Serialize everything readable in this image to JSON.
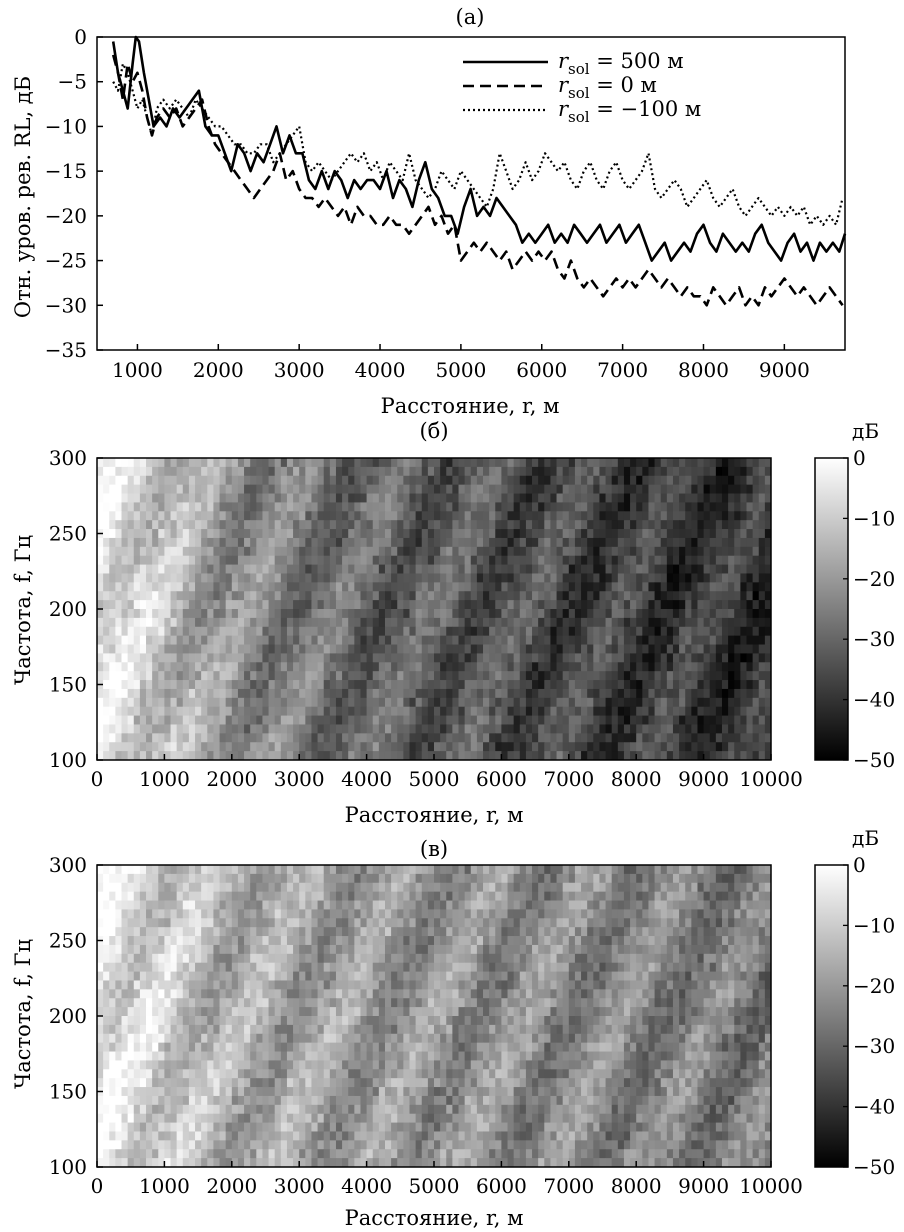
{
  "chart_data": [
    {
      "type": "line",
      "title": "(а)",
      "xlabel": "Расстояние, r, м",
      "ylabel": "Отн. уров. рев. RL, дБ",
      "xlim": [
        500,
        9750
      ],
      "ylim": [
        -35,
        0
      ],
      "xticks": [
        "1000",
        "2000",
        "3000",
        "4000",
        "5000",
        "6000",
        "7000",
        "8000",
        "9000"
      ],
      "yticks": [
        "0",
        "−5",
        "−10",
        "−15",
        "−20",
        "−25",
        "−30",
        "−35"
      ],
      "legend_position": "top-right",
      "series": [
        {
          "name_prefix": "r",
          "name_sub": "sol",
          "name_value": "= 500 м",
          "style": "solid",
          "x": [
            700,
            760,
            820,
            880,
            940,
            980,
            1020,
            1080,
            1140,
            1200,
            1280,
            1360,
            1440,
            1520,
            1600,
            1680,
            1760,
            1840,
            1920,
            2000,
            2080,
            2160,
            2240,
            2320,
            2400,
            2480,
            2560,
            2640,
            2720,
            2800,
            2880,
            2960,
            3040,
            3120,
            3200,
            3280,
            3360,
            3440,
            3520,
            3600,
            3680,
            3760,
            3840,
            3920,
            4000,
            4080,
            4160,
            4240,
            4320,
            4400,
            4480,
            4560,
            4640,
            4720,
            4800,
            4880,
            4960,
            5040,
            5120,
            5200,
            5280,
            5360,
            5440,
            5520,
            5600,
            5680,
            5760,
            5840,
            5920,
            6000,
            6080,
            6160,
            6240,
            6320,
            6400,
            6480,
            6560,
            6640,
            6720,
            6800,
            6880,
            6960,
            7040,
            7120,
            7200,
            7280,
            7360,
            7440,
            7520,
            7600,
            7680,
            7760,
            7840,
            7920,
            8000,
            8080,
            8160,
            8240,
            8320,
            8400,
            8480,
            8560,
            8640,
            8720,
            8800,
            8880,
            8960,
            9040,
            9120,
            9200,
            9280,
            9360,
            9440,
            9520,
            9600,
            9680,
            9750
          ],
          "y": [
            -0.5,
            -4,
            -6,
            -8,
            -3,
            0,
            -0.5,
            -4,
            -7,
            -10,
            -9,
            -10,
            -8,
            -9,
            -8,
            -7,
            -6,
            -10,
            -11,
            -11,
            -13,
            -15,
            -12,
            -13,
            -15,
            -13,
            -14,
            -12,
            -10,
            -13,
            -11,
            -13,
            -13,
            -16,
            -17,
            -15,
            -17,
            -15,
            -16,
            -18,
            -16,
            -17,
            -16,
            -16,
            -17,
            -15,
            -18,
            -16,
            -17,
            -19,
            -16,
            -14,
            -17,
            -18,
            -20,
            -20,
            -22,
            -19,
            -17,
            -20,
            -19,
            -20,
            -18,
            -19,
            -20,
            -21,
            -23,
            -22,
            -23,
            -22,
            -21,
            -23,
            -22,
            -23,
            -21,
            -22,
            -23,
            -22,
            -21,
            -23,
            -22,
            -21,
            -23,
            -22,
            -21,
            -23,
            -25,
            -24,
            -23,
            -25,
            -24,
            -23,
            -24,
            -22,
            -21,
            -23,
            -24,
            -22,
            -23,
            -24,
            -23,
            -24,
            -22,
            -21,
            -23,
            -24,
            -25,
            -23,
            -22,
            -24,
            -23,
            -25,
            -23,
            -24,
            -23,
            -24,
            -22
          ],
          "legend_label": "= 500 м"
        },
        {
          "name_prefix": "r",
          "name_sub": "sol",
          "name_value": "= 0 м",
          "style": "dashed",
          "x": [
            700,
            760,
            820,
            880,
            940,
            1000,
            1060,
            1120,
            1180,
            1240,
            1320,
            1400,
            1480,
            1560,
            1640,
            1720,
            1800,
            1880,
            1960,
            2040,
            2120,
            2200,
            2280,
            2360,
            2440,
            2520,
            2600,
            2680,
            2760,
            2840,
            2920,
            3000,
            3080,
            3160,
            3240,
            3320,
            3400,
            3480,
            3560,
            3640,
            3720,
            3800,
            3880,
            3960,
            4040,
            4120,
            4200,
            4280,
            4360,
            4440,
            4520,
            4600,
            4680,
            4760,
            4840,
            4920,
            5000,
            5080,
            5160,
            5240,
            5320,
            5400,
            5480,
            5560,
            5640,
            5720,
            5800,
            5880,
            5960,
            6040,
            6120,
            6200,
            6280,
            6360,
            6440,
            6520,
            6600,
            6680,
            6760,
            6840,
            6920,
            7000,
            7080,
            7160,
            7240,
            7320,
            7400,
            7480,
            7560,
            7640,
            7720,
            7800,
            7880,
            7960,
            8040,
            8120,
            8200,
            8280,
            8360,
            8440,
            8520,
            8600,
            8680,
            8760,
            8840,
            8920,
            9000,
            9080,
            9160,
            9240,
            9320,
            9400,
            9480,
            9560,
            9640,
            9720
          ],
          "y": [
            -2,
            -4,
            -7,
            -3,
            -5,
            -4,
            -6,
            -9,
            -11,
            -9,
            -8,
            -9,
            -8,
            -10,
            -9,
            -8,
            -7,
            -10,
            -12,
            -13,
            -14,
            -15,
            -16,
            -17,
            -18,
            -17,
            -16,
            -15,
            -13,
            -16,
            -15,
            -17,
            -18,
            -18,
            -19,
            -18,
            -19,
            -20,
            -19,
            -21,
            -19,
            -20,
            -20,
            -21,
            -21,
            -20,
            -21,
            -21,
            -22,
            -21,
            -20,
            -19,
            -21,
            -20,
            -22,
            -21,
            -25,
            -24,
            -23,
            -24,
            -23,
            -24,
            -25,
            -24,
            -26,
            -25,
            -24,
            -25,
            -24,
            -25,
            -24,
            -26,
            -27,
            -25,
            -27,
            -28,
            -27,
            -28,
            -29,
            -28,
            -27,
            -28,
            -27,
            -28,
            -27,
            -26,
            -27,
            -28,
            -27,
            -28,
            -29,
            -28,
            -29,
            -29,
            -30,
            -28,
            -29,
            -30,
            -29,
            -28,
            -30,
            -29,
            -30,
            -28,
            -29,
            -28,
            -27,
            -28,
            -29,
            -28,
            -29,
            -30,
            -29,
            -28,
            -29,
            -30
          ],
          "legend_label": "= 0 м"
        },
        {
          "name_prefix": "r",
          "name_sub": "sol",
          "name_value": "= −100 м",
          "style": "dotted",
          "x": [
            700,
            760,
            820,
            880,
            940,
            1000,
            1060,
            1120,
            1180,
            1240,
            1320,
            1400,
            1480,
            1560,
            1640,
            1720,
            1800,
            1880,
            1960,
            2040,
            2120,
            2200,
            2280,
            2360,
            2440,
            2520,
            2600,
            2680,
            2760,
            2840,
            2920,
            3000,
            3080,
            3160,
            3240,
            3320,
            3400,
            3480,
            3560,
            3640,
            3720,
            3800,
            3880,
            3960,
            4040,
            4120,
            4200,
            4280,
            4360,
            4440,
            4520,
            4600,
            4680,
            4760,
            4840,
            4920,
            5000,
            5080,
            5160,
            5240,
            5320,
            5400,
            5480,
            5560,
            5640,
            5720,
            5800,
            5880,
            5960,
            6040,
            6120,
            6200,
            6280,
            6360,
            6440,
            6520,
            6600,
            6680,
            6760,
            6840,
            6920,
            7000,
            7080,
            7160,
            7240,
            7320,
            7400,
            7480,
            7560,
            7640,
            7720,
            7800,
            7880,
            7960,
            8040,
            8120,
            8200,
            8280,
            8360,
            8440,
            8520,
            8600,
            8680,
            8760,
            8840,
            8920,
            9000,
            9080,
            9160,
            9240,
            9320,
            9400,
            9480,
            9560,
            9640,
            9720
          ],
          "y": [
            -5,
            -6,
            -3,
            -4,
            -6,
            -8,
            -7,
            -9,
            -11,
            -8,
            -7,
            -8,
            -7,
            -8,
            -9,
            -7,
            -8,
            -9,
            -10,
            -10,
            -11,
            -12,
            -12,
            -13,
            -13,
            -12,
            -12,
            -14,
            -13,
            -12,
            -11,
            -10,
            -14,
            -15,
            -14,
            -15,
            -16,
            -15,
            -14,
            -13,
            -14,
            -13,
            -15,
            -14,
            -16,
            -14,
            -15,
            -16,
            -13,
            -16,
            -17,
            -18,
            -17,
            -15,
            -16,
            -17,
            -15,
            -16,
            -17,
            -18,
            -19,
            -17,
            -13,
            -15,
            -17,
            -16,
            -14,
            -16,
            -15,
            -13,
            -14,
            -15,
            -14,
            -16,
            -17,
            -15,
            -14,
            -16,
            -17,
            -15,
            -14,
            -16,
            -17,
            -16,
            -15,
            -13,
            -17,
            -18,
            -17,
            -16,
            -17,
            -19,
            -18,
            -17,
            -16,
            -18,
            -19,
            -18,
            -17,
            -19,
            -20,
            -19,
            -18,
            -19,
            -20,
            -19,
            -20,
            -19,
            -20,
            -19,
            -21,
            -20,
            -21,
            -20,
            -21,
            -18
          ],
          "legend_label": "= −100 м"
        }
      ]
    },
    {
      "type": "heatmap",
      "title": "(б)",
      "xlabel": "Расстояние, r, м",
      "ylabel": "Частота, f, Гц",
      "xlim": [
        0,
        10000
      ],
      "ylim": [
        100,
        300
      ],
      "xticks": [
        "0",
        "1000",
        "2000",
        "3000",
        "4000",
        "5000",
        "6000",
        "7000",
        "8000",
        "9000",
        "10000"
      ],
      "yticks": [
        "300",
        "250",
        "200",
        "150",
        "100"
      ],
      "colorbar_label": "дБ",
      "colorbar_ticks": [
        "0",
        "−10",
        "−20",
        "−30",
        "−40",
        "−50"
      ],
      "colorbar_range": [
        -50,
        0
      ],
      "colormap": "gray",
      "trend_db_at_x": [
        [
          0,
          -4
        ],
        [
          1000,
          -12
        ],
        [
          2000,
          -22
        ],
        [
          4000,
          -30
        ],
        [
          6000,
          -34
        ],
        [
          8000,
          -38
        ],
        [
          10000,
          -40
        ]
      ]
    },
    {
      "type": "heatmap",
      "title": "(в)",
      "xlabel": "Расстояние, r, м",
      "ylabel": "Частота, f, Гц",
      "xlim": [
        0,
        10000
      ],
      "ylim": [
        100,
        300
      ],
      "xticks": [
        "0",
        "1000",
        "2000",
        "3000",
        "4000",
        "5000",
        "6000",
        "7000",
        "8000",
        "9000",
        "10000"
      ],
      "yticks": [
        "300",
        "250",
        "200",
        "150",
        "100"
      ],
      "colorbar_label": "дБ",
      "colorbar_ticks": [
        "0",
        "−10",
        "−20",
        "−30",
        "−40",
        "−50"
      ],
      "colorbar_range": [
        -50,
        0
      ],
      "colormap": "gray",
      "trend_db_at_x": [
        [
          0,
          -4
        ],
        [
          1000,
          -10
        ],
        [
          2000,
          -16
        ],
        [
          4000,
          -20
        ],
        [
          6000,
          -22
        ],
        [
          8000,
          -24
        ],
        [
          10000,
          -26
        ]
      ]
    }
  ],
  "colors": {
    "line": "#000000",
    "background": "#ffffff"
  }
}
